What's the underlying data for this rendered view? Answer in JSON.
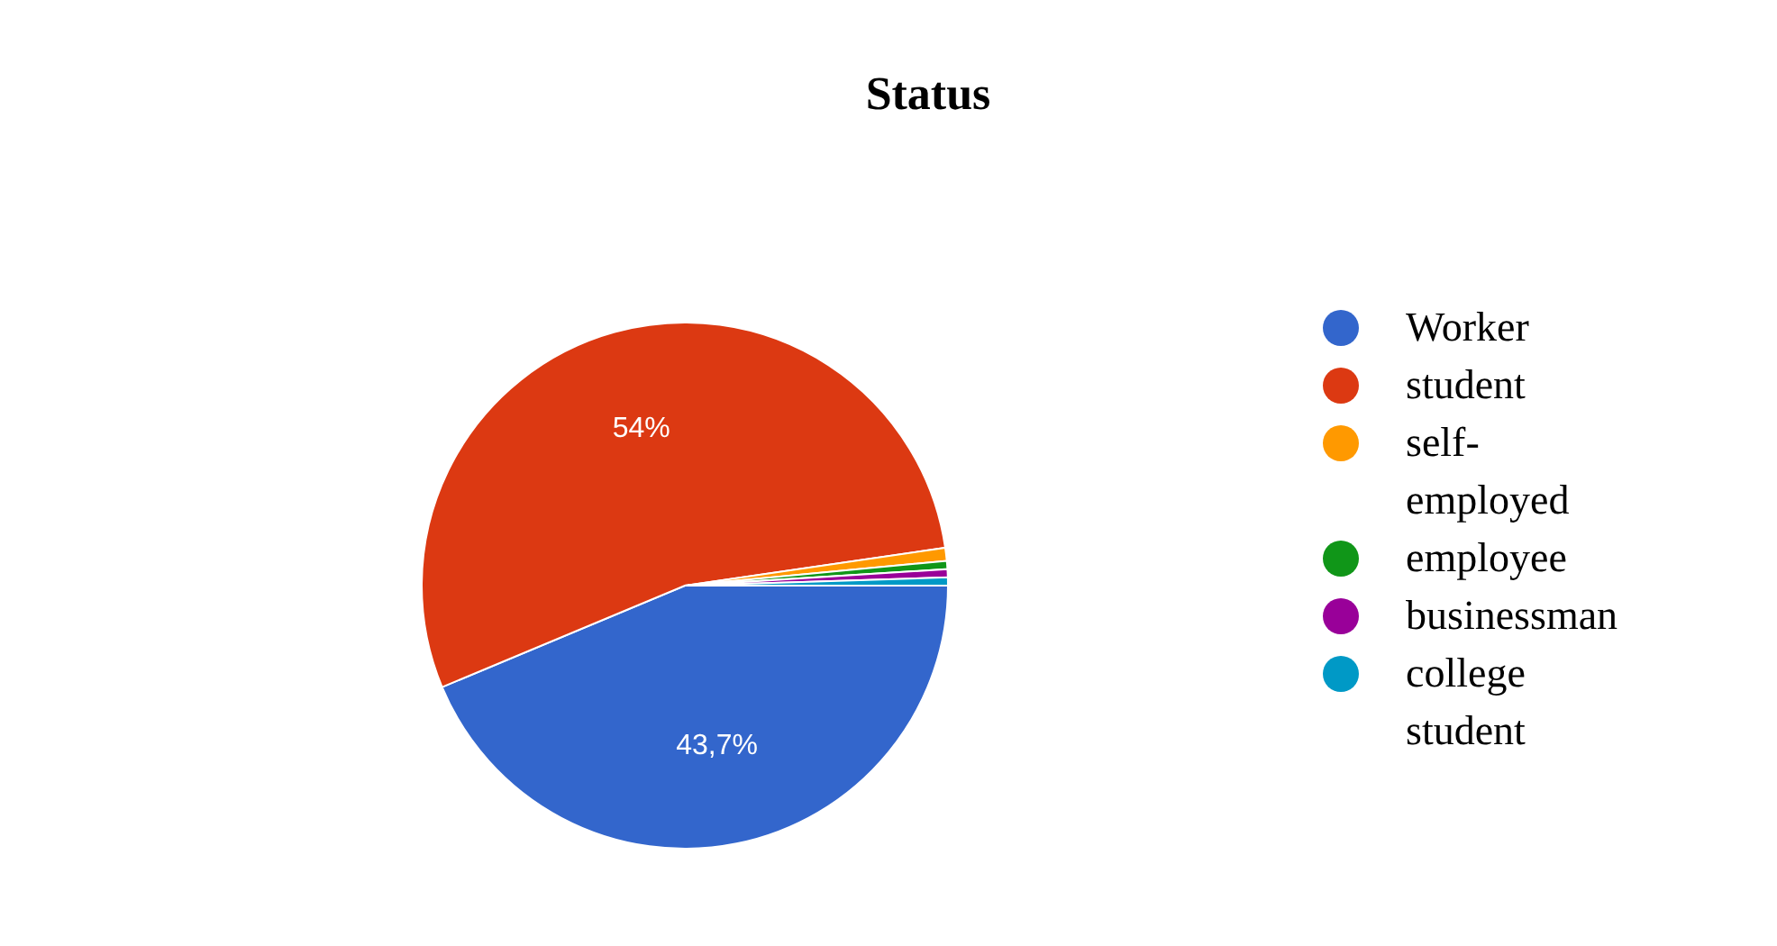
{
  "chart_data": {
    "type": "pie",
    "title": "Status",
    "categories": [
      "Worker",
      "student",
      "self-employed",
      "employee",
      "businessman",
      "college student"
    ],
    "values": [
      43.7,
      54,
      0.8,
      0.5,
      0.5,
      0.5
    ],
    "colors": [
      "#3366cc",
      "#dc3912",
      "#ff9900",
      "#109618",
      "#990099",
      "#0099c6"
    ],
    "value_labels": [
      "43,7%",
      "54%",
      null,
      null,
      null,
      null
    ],
    "legend": "right"
  }
}
